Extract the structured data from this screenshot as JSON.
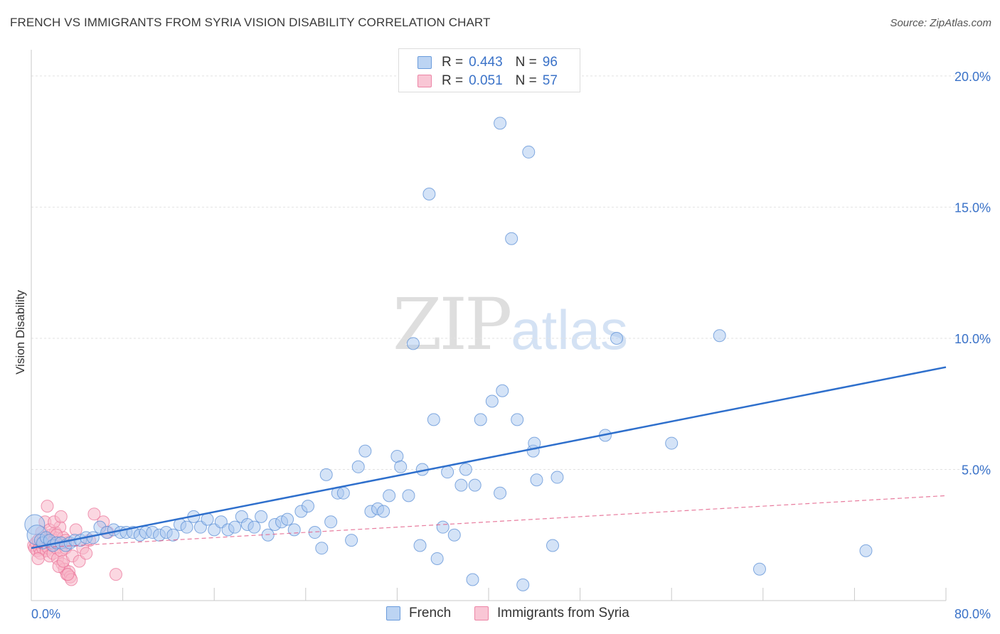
{
  "header": {
    "title": "FRENCH VS IMMIGRANTS FROM SYRIA VISION DISABILITY CORRELATION CHART",
    "source": "Source: ZipAtlas.com"
  },
  "watermark": {
    "zip": "ZIP",
    "atlas": "atlas"
  },
  "legend": {
    "rows": [
      {
        "r_label": "R =",
        "r_value": "0.443",
        "n_label": "N =",
        "n_value": "96"
      },
      {
        "r_label": "R =",
        "r_value": "0.051",
        "n_label": "N =",
        "n_value": "57"
      }
    ]
  },
  "bottom_legend": [
    "French",
    "Immigrants from Syria"
  ],
  "colors": {
    "french_fill": "#a9c8f0",
    "french_stroke": "#5b8fd6",
    "french_line": "#2e6fcc",
    "syria_fill": "#f7b6c8",
    "syria_stroke": "#e96f96",
    "syria_line": "#e25b86",
    "axis_text": "#3a72c8",
    "grid": "#e2e2e2"
  },
  "chart_data": {
    "type": "scatter",
    "title": "FRENCH VS IMMIGRANTS FROM SYRIA VISION DISABILITY CORRELATION CHART",
    "xlabel": "",
    "ylabel": "Vision Disability",
    "xlim": [
      0,
      80
    ],
    "ylim": [
      0,
      21
    ],
    "x_tick_labels": [
      "0.0%",
      "80.0%"
    ],
    "y_ticks": [
      5,
      10,
      15,
      20
    ],
    "y_tick_labels": [
      "5.0%",
      "10.0%",
      "15.0%",
      "20.0%"
    ],
    "grid": "horizontal dashed",
    "legend_position": "top-center",
    "series": [
      {
        "name": "French",
        "r": 0.443,
        "n": 96,
        "trend": {
          "x": [
            0,
            80
          ],
          "y": [
            2.0,
            8.9
          ]
        },
        "points": [
          [
            0.3,
            2.9
          ],
          [
            0.5,
            2.5
          ],
          [
            0.8,
            2.3
          ],
          [
            1.0,
            2.2
          ],
          [
            1.3,
            2.4
          ],
          [
            1.6,
            2.3
          ],
          [
            1.9,
            2.1
          ],
          [
            2.2,
            2.2
          ],
          [
            2.6,
            2.2
          ],
          [
            3.0,
            2.1
          ],
          [
            3.4,
            2.2
          ],
          [
            3.8,
            2.3
          ],
          [
            4.3,
            2.3
          ],
          [
            4.8,
            2.4
          ],
          [
            5.4,
            2.4
          ],
          [
            6.0,
            2.8
          ],
          [
            6.6,
            2.6
          ],
          [
            7.2,
            2.7
          ],
          [
            7.8,
            2.6
          ],
          [
            8.3,
            2.6
          ],
          [
            8.9,
            2.6
          ],
          [
            9.5,
            2.5
          ],
          [
            10.0,
            2.6
          ],
          [
            10.6,
            2.6
          ],
          [
            11.2,
            2.5
          ],
          [
            11.8,
            2.6
          ],
          [
            12.4,
            2.5
          ],
          [
            13.0,
            2.9
          ],
          [
            13.6,
            2.8
          ],
          [
            14.2,
            3.2
          ],
          [
            14.8,
            2.8
          ],
          [
            15.4,
            3.1
          ],
          [
            16.0,
            2.7
          ],
          [
            16.6,
            3.0
          ],
          [
            17.2,
            2.7
          ],
          [
            17.8,
            2.8
          ],
          [
            18.4,
            3.2
          ],
          [
            18.9,
            2.9
          ],
          [
            19.5,
            2.8
          ],
          [
            20.1,
            3.2
          ],
          [
            20.7,
            2.5
          ],
          [
            21.3,
            2.9
          ],
          [
            21.9,
            3.0
          ],
          [
            22.4,
            3.1
          ],
          [
            23.0,
            2.7
          ],
          [
            23.6,
            3.4
          ],
          [
            24.2,
            3.6
          ],
          [
            24.8,
            2.6
          ],
          [
            25.4,
            2.0
          ],
          [
            25.8,
            4.8
          ],
          [
            26.2,
            3.0
          ],
          [
            26.8,
            4.1
          ],
          [
            27.3,
            4.1
          ],
          [
            28.0,
            2.3
          ],
          [
            28.6,
            5.1
          ],
          [
            29.2,
            5.7
          ],
          [
            29.7,
            3.4
          ],
          [
            30.3,
            3.5
          ],
          [
            30.8,
            3.4
          ],
          [
            31.3,
            4.0
          ],
          [
            32.0,
            5.5
          ],
          [
            32.3,
            5.1
          ],
          [
            33.0,
            4.0
          ],
          [
            33.4,
            9.8
          ],
          [
            34.0,
            2.1
          ],
          [
            34.2,
            5.0
          ],
          [
            34.8,
            15.5
          ],
          [
            35.2,
            6.9
          ],
          [
            35.5,
            1.6
          ],
          [
            36.0,
            2.8
          ],
          [
            36.4,
            4.9
          ],
          [
            37.0,
            2.5
          ],
          [
            37.6,
            4.4
          ],
          [
            38.0,
            5.0
          ],
          [
            38.6,
            0.8
          ],
          [
            38.8,
            4.4
          ],
          [
            39.3,
            6.9
          ],
          [
            40.3,
            7.6
          ],
          [
            41.0,
            4.1
          ],
          [
            41.0,
            18.2
          ],
          [
            41.2,
            8.0
          ],
          [
            42.0,
            13.8
          ],
          [
            42.5,
            6.9
          ],
          [
            43.0,
            0.6
          ],
          [
            43.5,
            17.1
          ],
          [
            43.9,
            5.7
          ],
          [
            44.0,
            6.0
          ],
          [
            44.2,
            4.6
          ],
          [
            45.6,
            2.1
          ],
          [
            46.0,
            4.7
          ],
          [
            50.2,
            6.3
          ],
          [
            51.2,
            10.0
          ],
          [
            56.0,
            6.0
          ],
          [
            60.2,
            10.1
          ],
          [
            63.7,
            1.2
          ],
          [
            73.0,
            1.9
          ]
        ]
      },
      {
        "name": "Immigrants from Syria",
        "r": 0.051,
        "n": 57,
        "trend": {
          "x": [
            0,
            80
          ],
          "y": [
            2.0,
            4.0
          ]
        },
        "points": [
          [
            0.2,
            2.1
          ],
          [
            0.3,
            2.0
          ],
          [
            0.4,
            2.2
          ],
          [
            0.5,
            1.9
          ],
          [
            0.6,
            2.3
          ],
          [
            0.7,
            2.0
          ],
          [
            0.8,
            1.8
          ],
          [
            0.9,
            2.2
          ],
          [
            1.0,
            2.0
          ],
          [
            1.1,
            2.4
          ],
          [
            1.2,
            2.1
          ],
          [
            1.3,
            1.9
          ],
          [
            1.4,
            2.3
          ],
          [
            1.5,
            2.0
          ],
          [
            1.6,
            1.7
          ],
          [
            1.7,
            2.5
          ],
          [
            1.8,
            2.1
          ],
          [
            1.9,
            1.8
          ],
          [
            2.0,
            2.3
          ],
          [
            2.1,
            2.6
          ],
          [
            2.2,
            2.0
          ],
          [
            2.3,
            1.6
          ],
          [
            2.4,
            2.2
          ],
          [
            2.5,
            2.8
          ],
          [
            2.6,
            1.9
          ],
          [
            2.7,
            1.4
          ],
          [
            2.8,
            2.4
          ],
          [
            2.9,
            1.2
          ],
          [
            3.0,
            2.0
          ],
          [
            3.1,
            1.0
          ],
          [
            3.2,
            2.2
          ],
          [
            3.3,
            1.1
          ],
          [
            3.4,
            0.9
          ],
          [
            3.5,
            0.8
          ],
          [
            0.6,
            1.6
          ],
          [
            0.9,
            2.6
          ],
          [
            1.2,
            3.0
          ],
          [
            1.4,
            3.6
          ],
          [
            1.6,
            2.7
          ],
          [
            1.8,
            2.2
          ],
          [
            2.0,
            3.0
          ],
          [
            2.2,
            2.5
          ],
          [
            2.4,
            1.3
          ],
          [
            2.6,
            3.2
          ],
          [
            2.8,
            1.5
          ],
          [
            3.0,
            2.3
          ],
          [
            3.2,
            1.0
          ],
          [
            3.6,
            1.7
          ],
          [
            3.9,
            2.7
          ],
          [
            4.2,
            1.5
          ],
          [
            4.5,
            2.0
          ],
          [
            4.8,
            1.8
          ],
          [
            5.1,
            2.3
          ],
          [
            5.5,
            3.3
          ],
          [
            6.3,
            3.0
          ],
          [
            6.7,
            2.6
          ],
          [
            7.4,
            1.0
          ]
        ]
      }
    ]
  }
}
